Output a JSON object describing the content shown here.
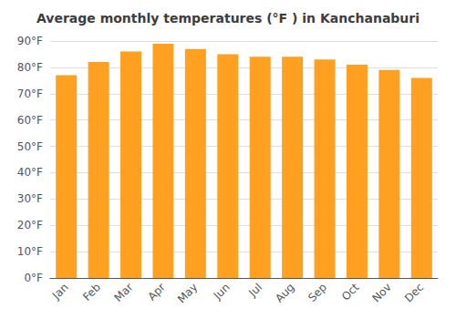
{
  "chart_data": {
    "type": "bar",
    "title": "Average monthly temperatures (°F ) in Kanchanaburi",
    "categories": [
      "Jan",
      "Feb",
      "Mar",
      "Apr",
      "May",
      "Jun",
      "Jul",
      "Aug",
      "Sep",
      "Oct",
      "Nov",
      "Dec"
    ],
    "values": [
      77,
      82,
      86,
      89,
      87,
      85,
      84,
      84,
      83,
      81,
      79,
      76
    ],
    "color": "#FFA020",
    "ylim": [
      0,
      90
    ],
    "yticks": [
      {
        "value": 0,
        "label": "0°F"
      },
      {
        "value": 10,
        "label": "10°F"
      },
      {
        "value": 20,
        "label": "20°F"
      },
      {
        "value": 30,
        "label": "30°F"
      },
      {
        "value": 40,
        "label": "40°F"
      },
      {
        "value": 50,
        "label": "50°F"
      },
      {
        "value": 60,
        "label": "60°F"
      },
      {
        "value": 70,
        "label": "70°F"
      },
      {
        "value": 80,
        "label": "80°F"
      },
      {
        "value": 90,
        "label": "90°F"
      }
    ],
    "grid": true
  }
}
